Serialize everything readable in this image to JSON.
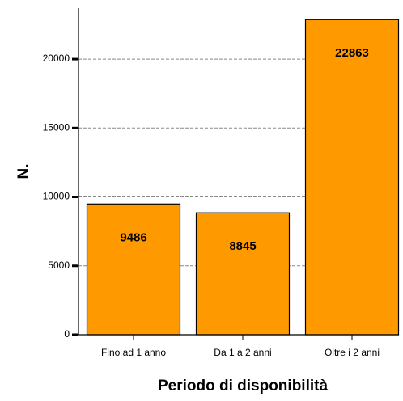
{
  "chart_data": {
    "type": "bar",
    "categories": [
      "Fino ad 1 anno",
      "Da 1 a 2 anni",
      "Oltre i 2 anni"
    ],
    "values": [
      9486,
      8845,
      22863
    ],
    "color": "#ff9900",
    "xlabel": "Periodo di disponibilità",
    "ylabel": "N.",
    "ylim": [
      0,
      23700
    ],
    "yticks": [
      0,
      5000,
      10000,
      15000,
      20000
    ],
    "grid": true
  }
}
